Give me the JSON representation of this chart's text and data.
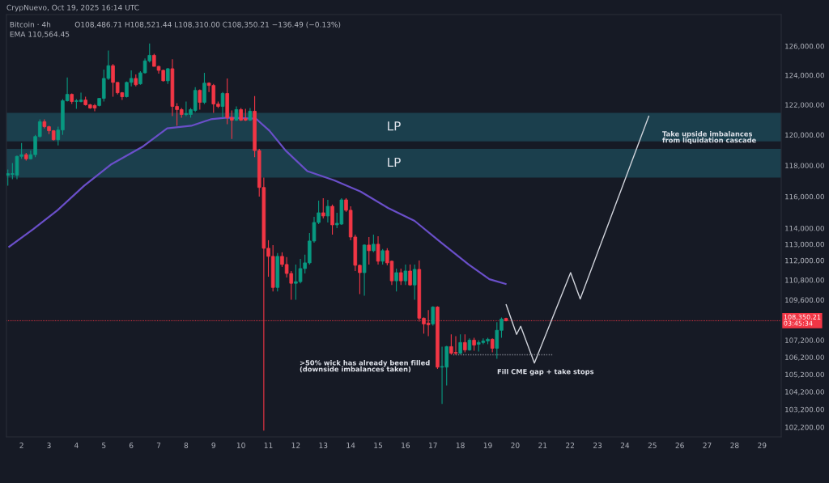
{
  "chart_data": {
    "type": "candlestick",
    "title": "Bitcoin · 4h",
    "x": [
      1.5,
      1.667,
      1.833,
      2,
      2.167,
      2.333,
      2.5,
      2.667,
      2.833,
      3,
      3.167,
      3.333,
      3.5,
      3.667,
      3.833,
      4,
      4.167,
      4.333,
      4.5,
      4.667,
      4.833,
      5,
      5.167,
      5.333,
      5.5,
      5.667,
      5.833,
      6,
      6.167,
      6.333,
      6.5,
      6.667,
      6.833,
      7,
      7.167,
      7.333,
      7.5,
      7.667,
      7.833,
      8,
      8.167,
      8.333,
      8.5,
      8.667,
      8.833,
      9,
      9.167,
      9.333,
      9.5,
      9.667,
      9.833,
      10,
      10.167,
      10.333,
      10.5,
      10.667,
      10.833,
      11,
      11.167,
      11.333,
      11.5,
      11.667,
      11.833,
      12,
      12.167,
      12.333,
      12.5,
      12.667,
      12.833,
      13,
      13.167,
      13.333,
      13.5,
      13.667,
      13.833,
      14,
      14.167,
      14.333,
      14.5,
      14.667,
      14.833,
      15,
      15.167,
      15.333,
      15.5,
      15.667,
      15.833,
      16,
      16.167,
      16.333,
      16.5,
      16.667,
      16.833,
      17,
      17.167,
      17.333,
      17.5,
      17.667,
      17.833,
      18,
      18.167,
      18.333,
      18.5,
      18.667,
      18.833,
      19,
      19.167,
      19.333,
      19.5,
      19.667
    ],
    "ohlc": [
      [
        117370,
        117740,
        116690,
        117470
      ],
      [
        117420,
        118160,
        117110,
        117470
      ],
      [
        117370,
        118650,
        117110,
        118590
      ],
      [
        118590,
        119460,
        118430,
        118700
      ],
      [
        118700,
        118810,
        118320,
        118430
      ],
      [
        118430,
        118970,
        118380,
        118700
      ],
      [
        118700,
        120000,
        118540,
        119890
      ],
      [
        119890,
        121030,
        119840,
        120870
      ],
      [
        120870,
        121030,
        120430,
        120540
      ],
      [
        120540,
        120600,
        120050,
        120270
      ],
      [
        120270,
        120320,
        119620,
        119680
      ],
      [
        119680,
        120540,
        119300,
        120320
      ],
      [
        120320,
        122380,
        120000,
        122270
      ],
      [
        122270,
        123840,
        122220,
        122700
      ],
      [
        122700,
        122760,
        122050,
        122220
      ],
      [
        122220,
        122380,
        121730,
        122270
      ],
      [
        122220,
        122810,
        122160,
        122320
      ],
      [
        122320,
        122540,
        121950,
        122000
      ],
      [
        122000,
        122050,
        121730,
        121780
      ],
      [
        121950,
        122050,
        121570,
        121780
      ],
      [
        121950,
        122430,
        121890,
        122430
      ],
      [
        122430,
        124380,
        122220,
        123780
      ],
      [
        123780,
        125690,
        123680,
        124650
      ],
      [
        124650,
        124760,
        122540,
        123510
      ],
      [
        123510,
        123510,
        122700,
        122810
      ],
      [
        122810,
        122860,
        122320,
        122540
      ],
      [
        122540,
        123570,
        122490,
        123510
      ],
      [
        123510,
        124330,
        123240,
        123780
      ],
      [
        123780,
        124050,
        123240,
        123350
      ],
      [
        123410,
        124270,
        123350,
        124160
      ],
      [
        124160,
        125140,
        124110,
        124980
      ],
      [
        124980,
        126180,
        124870,
        125360
      ],
      [
        125360,
        125470,
        124600,
        124600
      ],
      [
        124600,
        124650,
        124110,
        124330
      ],
      [
        124330,
        124380,
        123570,
        123620
      ],
      [
        123620,
        124490,
        123410,
        124440
      ],
      [
        124440,
        125090,
        121240,
        121890
      ],
      [
        121890,
        122110,
        120600,
        121680
      ],
      [
        121680,
        121780,
        121140,
        121350
      ],
      [
        121350,
        122220,
        121240,
        121410
      ],
      [
        121350,
        121780,
        121140,
        121680
      ],
      [
        121620,
        123190,
        121510,
        122970
      ],
      [
        122970,
        123030,
        121680,
        122160
      ],
      [
        122160,
        124160,
        122050,
        123460
      ],
      [
        123460,
        123510,
        122860,
        123300
      ],
      [
        123300,
        123410,
        121460,
        122050
      ],
      [
        122050,
        122220,
        121780,
        121890
      ],
      [
        121890,
        122860,
        121140,
        122760
      ],
      [
        122760,
        123780,
        120700,
        121140
      ],
      [
        121140,
        121620,
        119730,
        120970
      ],
      [
        120970,
        121890,
        120920,
        121680
      ],
      [
        121680,
        121780,
        120920,
        120970
      ],
      [
        121080,
        121730,
        120920,
        120970
      ],
      [
        120970,
        121780,
        120920,
        121570
      ],
      [
        121570,
        122590,
        118540,
        118970
      ],
      [
        118970,
        119080,
        116000,
        116580
      ],
      [
        116580,
        117210,
        102000,
        112750
      ],
      [
        112750,
        113250,
        111000,
        112250
      ],
      [
        112250,
        112950,
        110100,
        110350
      ],
      [
        110350,
        112450,
        110100,
        112250
      ],
      [
        112250,
        112500,
        111600,
        111750
      ],
      [
        111750,
        112200,
        110950,
        111200
      ],
      [
        111200,
        111350,
        109600,
        110600
      ],
      [
        110600,
        111750,
        109600,
        110700
      ],
      [
        110700,
        112100,
        110600,
        111500
      ],
      [
        111500,
        112350,
        111200,
        111850
      ],
      [
        111850,
        113700,
        111750,
        113200
      ],
      [
        113200,
        114720,
        113100,
        114360
      ],
      [
        114360,
        115740,
        114260,
        114970
      ],
      [
        114970,
        115900,
        114610,
        114770
      ],
      [
        114770,
        115790,
        114360,
        115380
      ],
      [
        115380,
        115490,
        113600,
        114210
      ],
      [
        114210,
        114970,
        114000,
        114310
      ],
      [
        114260,
        115900,
        114210,
        115790
      ],
      [
        115790,
        115900,
        115030,
        115130
      ],
      [
        115130,
        115380,
        113250,
        113450
      ],
      [
        113450,
        113600,
        111350,
        111700
      ],
      [
        111700,
        111750,
        109950,
        111250
      ],
      [
        111250,
        113000,
        109850,
        112950
      ],
      [
        112950,
        113450,
        111750,
        112600
      ],
      [
        112600,
        113600,
        112500,
        113000
      ],
      [
        113000,
        113500,
        111750,
        111950
      ],
      [
        111950,
        112700,
        111750,
        112600
      ],
      [
        112600,
        112750,
        111700,
        111850
      ],
      [
        111950,
        112000,
        110500,
        110750
      ],
      [
        110750,
        111500,
        110100,
        111250
      ],
      [
        111250,
        111500,
        110500,
        110750
      ],
      [
        110750,
        111750,
        110500,
        111350
      ],
      [
        111350,
        111750,
        110450,
        110500
      ],
      [
        110500,
        111750,
        109600,
        111450
      ],
      [
        111450,
        112000,
        108300,
        108500
      ],
      [
        108500,
        108540,
        107580,
        108160
      ],
      [
        108210,
        108980,
        107440,
        108110
      ],
      [
        108160,
        109220,
        108060,
        109170
      ],
      [
        109170,
        109220,
        105520,
        105620
      ],
      [
        105620,
        106820,
        103510,
        105660
      ],
      [
        105620,
        106860,
        104560,
        106820
      ],
      [
        106820,
        107540,
        106340,
        106430
      ],
      [
        106480,
        107440,
        106340,
        106430
      ],
      [
        106430,
        107540,
        106380,
        107060
      ],
      [
        107060,
        107540,
        106480,
        106620
      ],
      [
        106620,
        107300,
        106580,
        107200
      ],
      [
        107200,
        107340,
        106580,
        106910
      ],
      [
        106960,
        107200,
        106530,
        107060
      ],
      [
        107060,
        107300,
        106960,
        107150
      ],
      [
        107150,
        107340,
        106960,
        107250
      ],
      [
        107250,
        107300,
        106480,
        106720
      ],
      [
        106720,
        108260,
        106100,
        107780
      ],
      [
        107780,
        108540,
        107340,
        108450
      ],
      [
        108486.71,
        108521.44,
        108310.0,
        108350.21
      ]
    ],
    "colors": [
      "#089981",
      "#089981",
      "#089981",
      "#089981",
      "#f23645",
      "#089981",
      "#089981",
      "#089981",
      "#f23645",
      "#f23645",
      "#f23645",
      "#089981",
      "#089981",
      "#089981",
      "#f23645",
      "#089981",
      "#089981",
      "#f23645",
      "#f23645",
      "#f23645",
      "#089981",
      "#089981",
      "#089981",
      "#f23645",
      "#f23645",
      "#f23645",
      "#089981",
      "#089981",
      "#f23645",
      "#089981",
      "#089981",
      "#089981",
      "#f23645",
      "#f23645",
      "#f23645",
      "#089981",
      "#f23645",
      "#f23645",
      "#f23645",
      "#089981",
      "#089981",
      "#089981",
      "#f23645",
      "#089981",
      "#f23645",
      "#f23645",
      "#f23645",
      "#089981",
      "#f23645",
      "#f23645",
      "#089981",
      "#f23645",
      "#f23645",
      "#089981",
      "#f23645",
      "#f23645",
      "#f23645",
      "#f23645",
      "#f23645",
      "#089981",
      "#f23645",
      "#f23645",
      "#f23645",
      "#089981",
      "#089981",
      "#089981",
      "#089981",
      "#089981",
      "#089981",
      "#f23645",
      "#089981",
      "#f23645",
      "#089981",
      "#089981",
      "#f23645",
      "#f23645",
      "#f23645",
      "#f23645",
      "#089981",
      "#f23645",
      "#089981",
      "#f23645",
      "#089981",
      "#f23645",
      "#f23645",
      "#089981",
      "#f23645",
      "#089981",
      "#f23645",
      "#089981",
      "#f23645",
      "#f23645",
      "#f23645",
      "#089981",
      "#f23645",
      "#089981",
      "#089981",
      "#f23645",
      "#f23645",
      "#089981",
      "#f23645",
      "#089981",
      "#f23645",
      "#089981",
      "#089981",
      "#089981",
      "#f23645",
      "#089981",
      "#089981",
      "#f23645"
    ],
    "series": [
      {
        "type": "line",
        "color": "#6a4fc9",
        "x": [
          1.55,
          2.43,
          3.31,
          4.28,
          5.25,
          6.43,
          7.31,
          8.19,
          8.9,
          9.49,
          10.54,
          11.04,
          11.63,
          12.42,
          13.39,
          14.36,
          15.36,
          16.33,
          17.3,
          18.3,
          19.06,
          19.65
        ],
        "values": [
          112850,
          113950,
          115130,
          116690,
          118050,
          119240,
          120430,
          120600,
          121030,
          121140,
          121080,
          120270,
          118970,
          117630,
          117050,
          116320,
          115280,
          114460,
          113100,
          111750,
          110850,
          110564.45
        ]
      },
      {
        "type": "line",
        "color": "#d1d4dc",
        "x": [
          19.67,
          20.05,
          20.2,
          20.7,
          22.02,
          22.37,
          24.87
        ],
        "values": [
          109310,
          107540,
          108020,
          105860,
          111250,
          109650,
          121240
        ]
      },
      {
        "type": "line",
        "color": "#787b86",
        "line_style": "dotted",
        "x": [
          17.74,
          21.35
        ],
        "values": [
          106340,
          106340
        ]
      }
    ],
    "bands": [
      {
        "axis": "y",
        "from": 119570,
        "to": 121460,
        "label": "LP",
        "color": "#1c4452"
      },
      {
        "axis": "y",
        "from": 117210,
        "to": 119080,
        "label": "LP",
        "color": "#1c4452"
      }
    ],
    "ref_lines": [
      {
        "axis": "y",
        "value": 108350.21,
        "label": "108,350.21\n03:45:34",
        "color": "#f23645",
        "line_style": "dotted"
      }
    ],
    "annotations": [
      "CrypNuevo, Oct 19, 2025 16:14 UTC",
      "O108,486.71 H108,521.44 L108,310.00 C108,350.21 −136.49 (−0.13%)",
      "EMA 110,564.45",
      "Take upside imbalances\nfrom liquidation cascade",
      ">50% wick has already been filled\n(downside imbalances taken)",
      "Fill CME gap + take stops"
    ],
    "log": true,
    "xlim": [
      1.45,
      29.7
    ],
    "xticks": [
      2,
      3,
      4,
      5,
      6,
      7,
      8,
      9,
      10,
      11,
      12,
      13,
      14,
      15,
      16,
      17,
      18,
      19,
      20,
      21,
      22,
      23,
      24,
      25,
      26,
      27,
      28,
      29
    ],
    "ylim": [
      101650,
      128200
    ],
    "yticks": [
      {
        "value": 126000,
        "label": "126,000.00"
      },
      {
        "value": 124000,
        "label": "124,000.00"
      },
      {
        "value": 122000,
        "label": "122,000.00"
      },
      {
        "value": 120000,
        "label": "120,000.00"
      },
      {
        "value": 118000,
        "label": "118,000.00"
      },
      {
        "value": 116000,
        "label": "116,000.00"
      },
      {
        "value": 114000,
        "label": "114,000.00"
      },
      {
        "value": 113000,
        "label": "113,000.00"
      },
      {
        "value": 112000,
        "label": "112,000.00"
      },
      {
        "value": 110800,
        "label": "110,800.00"
      },
      {
        "value": 109600,
        "label": "109,600.00"
      },
      {
        "value": 107200,
        "label": "107,200.00"
      },
      {
        "value": 106200,
        "label": "106,200.00"
      },
      {
        "value": 105200,
        "label": "105,200.00"
      },
      {
        "value": 104200,
        "label": "104,200.00"
      },
      {
        "value": 103200,
        "label": "103,200.00"
      },
      {
        "value": 102200,
        "label": "102,200.00"
      }
    ],
    "grid": false
  }
}
